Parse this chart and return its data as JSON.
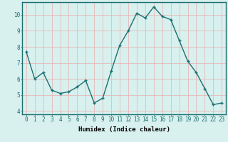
{
  "x": [
    0,
    1,
    2,
    3,
    4,
    5,
    6,
    7,
    8,
    9,
    10,
    11,
    12,
    13,
    14,
    15,
    16,
    17,
    18,
    19,
    20,
    21,
    22,
    23
  ],
  "y": [
    7.7,
    6.0,
    6.4,
    5.3,
    5.1,
    5.2,
    5.5,
    5.9,
    4.5,
    4.8,
    6.5,
    8.1,
    9.0,
    10.1,
    9.8,
    10.5,
    9.9,
    9.7,
    8.4,
    7.1,
    6.4,
    5.4,
    4.4,
    4.5
  ],
  "line_color": "#1a7070",
  "marker": "+",
  "marker_color": "#1a7070",
  "bg_color": "#d8f0ee",
  "grid_color_h": "#e8b0b0",
  "grid_color_v": "#e8b0b0",
  "xlabel": "Humidex (Indice chaleur)",
  "ylabel": "",
  "title": "",
  "ylim": [
    3.8,
    10.8
  ],
  "xlim": [
    -0.5,
    23.5
  ],
  "yticks": [
    4,
    5,
    6,
    7,
    8,
    9,
    10
  ],
  "xticks": [
    0,
    1,
    2,
    3,
    4,
    5,
    6,
    7,
    8,
    9,
    10,
    11,
    12,
    13,
    14,
    15,
    16,
    17,
    18,
    19,
    20,
    21,
    22,
    23
  ],
  "xlabel_fontsize": 6.5,
  "tick_fontsize": 5.5,
  "linewidth": 1.0,
  "markersize": 3.5
}
